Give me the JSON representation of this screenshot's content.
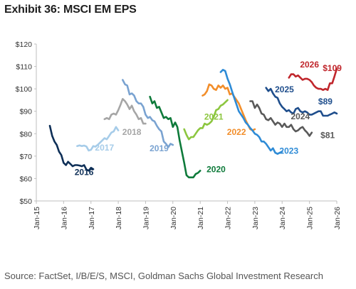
{
  "title": "Exhibit 36: MSCI EM EPS",
  "source": "Source: FactSet, I/B/E/S, MSCI, Goldman Sachs Global Investment Research",
  "chart_data": {
    "type": "line",
    "title": "Exhibit 36: MSCI EM EPS",
    "ylim": [
      50,
      120
    ],
    "xlim": [
      "2015-01-01",
      "2026-01-01"
    ],
    "y_ticks": [
      "$50",
      "$60",
      "$70",
      "$80",
      "$90",
      "$100",
      "$110",
      "$120"
    ],
    "y_tick_values": [
      50,
      60,
      70,
      80,
      90,
      100,
      110,
      120
    ],
    "x_ticks": [
      "Jan-15",
      "Jan-16",
      "Jan-17",
      "Jan-18",
      "Jan-19",
      "Jan-20",
      "Jan-21",
      "Jan-22",
      "Jan-23",
      "Jan-24",
      "Jan-25",
      "Jan-26"
    ],
    "x_tick_dates": [
      "2015-01-01",
      "2016-01-01",
      "2017-01-01",
      "2018-01-01",
      "2019-01-01",
      "2020-01-01",
      "2021-01-01",
      "2022-01-01",
      "2023-01-01",
      "2024-01-01",
      "2025-01-01",
      "2026-01-01"
    ],
    "grid": false,
    "legend": "none",
    "series": [
      {
        "name": "2016",
        "color": "#0e2f57",
        "x": [
          "2015-07-01",
          "2015-08-01",
          "2015-09-01",
          "2015-10-01",
          "2015-11-01",
          "2015-12-01",
          "2016-01-01",
          "2016-02-01",
          "2016-03-01",
          "2016-04-01",
          "2016-05-01",
          "2016-06-01",
          "2016-07-01",
          "2016-08-01",
          "2016-09-01",
          "2016-10-01",
          "2016-11-01",
          "2016-12-01",
          "2017-01-01",
          "2017-02-01"
        ],
        "y": [
          83.5,
          79,
          76.5,
          75,
          72,
          70.5,
          67,
          66,
          67.5,
          66.5,
          65.5,
          66,
          66,
          65.8,
          65.5,
          66,
          64,
          63.5,
          64.8,
          64.2
        ]
      },
      {
        "name": "2017",
        "color": "#a6cce9",
        "x": [
          "2016-07-01",
          "2016-08-01",
          "2016-09-01",
          "2016-10-01",
          "2016-11-01",
          "2016-12-01",
          "2017-01-01",
          "2017-02-01",
          "2017-03-01",
          "2017-04-01",
          "2017-05-01",
          "2017-06-01",
          "2017-07-01",
          "2017-08-01",
          "2017-09-01",
          "2017-10-01",
          "2017-11-01",
          "2017-12-01",
          "2018-01-01"
        ],
        "y": [
          74.5,
          74.8,
          74.5,
          74.7,
          74.3,
          72.5,
          72.8,
          74.5,
          74.2,
          75,
          76,
          77,
          78,
          77.5,
          79,
          80.5,
          81,
          83,
          81.5
        ]
      },
      {
        "name": "2018",
        "color": "#a6a6a6",
        "x": [
          "2017-07-01",
          "2017-08-01",
          "2017-09-01",
          "2017-10-01",
          "2017-11-01",
          "2017-12-01",
          "2018-01-01",
          "2018-02-01",
          "2018-03-01",
          "2018-04-01",
          "2018-05-01",
          "2018-06-01",
          "2018-07-01",
          "2018-08-01",
          "2018-09-01",
          "2018-10-01",
          "2018-11-01",
          "2018-12-01",
          "2019-01-01"
        ],
        "y": [
          86.5,
          87,
          86.5,
          88.5,
          89,
          88.5,
          90.5,
          93,
          95.5,
          94.5,
          93,
          91,
          92.5,
          90,
          88.5,
          86.5,
          87,
          84.5,
          84.5
        ]
      },
      {
        "name": "2019",
        "color": "#7aa3d1",
        "x": [
          "2018-03-01",
          "2018-04-01",
          "2018-05-01",
          "2018-06-01",
          "2018-07-01",
          "2018-08-01",
          "2018-09-01",
          "2018-10-01",
          "2018-11-01",
          "2018-12-01",
          "2019-01-01",
          "2019-02-01",
          "2019-03-01",
          "2019-04-01",
          "2019-05-01",
          "2019-06-01",
          "2019-07-01",
          "2019-08-01",
          "2019-09-01",
          "2019-10-01",
          "2019-11-01",
          "2019-12-01",
          "2020-01-01"
        ],
        "y": [
          104,
          102,
          101.5,
          97.5,
          98,
          97,
          94.5,
          93.5,
          93.5,
          92,
          88.5,
          87,
          87.5,
          86,
          85.5,
          83.5,
          82,
          81,
          76.5,
          75.5,
          74,
          75.5,
          75
        ]
      },
      {
        "name": "2020",
        "color": "#0e7a3a",
        "x": [
          "2019-03-01",
          "2019-04-01",
          "2019-05-01",
          "2019-06-01",
          "2019-07-01",
          "2019-08-01",
          "2019-09-01",
          "2019-10-01",
          "2019-11-01",
          "2019-12-01",
          "2020-01-01",
          "2020-02-01",
          "2020-03-01",
          "2020-04-01",
          "2020-05-01",
          "2020-06-01",
          "2020-07-01",
          "2020-08-01",
          "2020-09-01",
          "2020-10-01",
          "2020-11-01",
          "2020-12-01",
          "2021-01-01"
        ],
        "y": [
          96.5,
          93.5,
          94.5,
          91.5,
          92,
          89.5,
          87,
          87.5,
          86.5,
          87,
          83,
          85,
          83,
          77,
          72,
          67,
          61.5,
          60.5,
          60.5,
          60.5,
          62,
          62.5,
          63.5
        ]
      },
      {
        "name": "2021",
        "color": "#8cc63f",
        "x": [
          "2020-06-01",
          "2020-07-01",
          "2020-08-01",
          "2020-09-01",
          "2020-10-01",
          "2020-11-01",
          "2020-12-01",
          "2021-01-01",
          "2021-02-01",
          "2021-03-01",
          "2021-04-01",
          "2021-05-01",
          "2021-06-01",
          "2021-07-01",
          "2021-08-01",
          "2021-09-01",
          "2021-10-01",
          "2021-11-01",
          "2021-12-01",
          "2022-01-01"
        ],
        "y": [
          82,
          79.5,
          77.5,
          78.5,
          78.5,
          80,
          81.5,
          82.5,
          82.5,
          84.5,
          84,
          84.5,
          85.5,
          87.5,
          90.5,
          91,
          92.5,
          93,
          94,
          95
        ]
      },
      {
        "name": "2022",
        "color": "#f28e2b",
        "x": [
          "2021-02-01",
          "2021-03-01",
          "2021-04-01",
          "2021-05-01",
          "2021-06-01",
          "2021-07-01",
          "2021-08-01",
          "2021-09-01",
          "2021-10-01",
          "2021-11-01",
          "2021-12-01",
          "2022-01-01",
          "2022-02-01",
          "2022-03-01",
          "2022-04-01",
          "2022-05-01",
          "2022-06-01",
          "2022-07-01",
          "2022-08-01",
          "2022-09-01",
          "2022-10-01",
          "2022-11-01",
          "2022-12-01",
          "2023-01-01"
        ],
        "y": [
          97,
          97.5,
          99,
          102,
          101.5,
          100,
          99.5,
          101.5,
          100.5,
          101.5,
          100,
          100.5,
          97.5,
          98,
          96.5,
          95,
          93.5,
          91,
          88.5,
          86,
          84,
          82,
          81.5,
          82
        ]
      },
      {
        "name": "2023",
        "color": "#2e8bd6",
        "x": [
          "2021-10-01",
          "2021-11-01",
          "2021-12-01",
          "2022-01-01",
          "2022-02-01",
          "2022-03-01",
          "2022-04-01",
          "2022-05-01",
          "2022-06-01",
          "2022-07-01",
          "2022-08-01",
          "2022-09-01",
          "2022-10-01",
          "2022-11-01",
          "2022-12-01",
          "2023-01-01",
          "2023-02-01",
          "2023-03-01",
          "2023-04-01",
          "2023-05-01",
          "2023-06-01",
          "2023-07-01",
          "2023-08-01",
          "2023-09-01",
          "2023-10-01",
          "2023-11-01",
          "2023-12-01",
          "2024-01-01"
        ],
        "y": [
          107.5,
          108.5,
          108,
          104.5,
          102,
          99,
          96,
          93,
          90,
          88.5,
          87,
          85,
          84,
          82.5,
          81.5,
          80,
          79.5,
          78.5,
          76.5,
          76.5,
          75.5,
          74,
          72.5,
          73.5,
          71.5,
          71,
          71.5,
          72
        ]
      },
      {
        "name": "2024",
        "color": "#595959",
        "x": [
          "2022-11-01",
          "2022-12-01",
          "2023-01-01",
          "2023-02-01",
          "2023-03-01",
          "2023-04-01",
          "2023-05-01",
          "2023-06-01",
          "2023-07-01",
          "2023-08-01",
          "2023-09-01",
          "2023-10-01",
          "2023-11-01",
          "2023-12-01",
          "2024-01-01",
          "2024-02-01",
          "2024-03-01",
          "2024-04-01",
          "2024-05-01",
          "2024-06-01",
          "2024-07-01",
          "2024-08-01",
          "2024-09-01",
          "2024-10-01",
          "2024-11-01",
          "2024-12-01",
          "2025-01-01",
          "2025-02-01"
        ],
        "y": [
          94.5,
          94.5,
          91.5,
          93,
          91.5,
          89,
          88.5,
          86.5,
          86,
          87,
          85.5,
          84,
          85,
          84.5,
          83,
          84.5,
          83,
          83,
          84,
          82,
          81,
          81.5,
          82.5,
          83,
          81.5,
          80.5,
          79,
          80.5
        ]
      },
      {
        "name": "2025",
        "color": "#1f4e8c",
        "x": [
          "2023-06-01",
          "2023-07-01",
          "2023-08-01",
          "2023-09-01",
          "2023-10-01",
          "2023-11-01",
          "2023-12-01",
          "2024-01-01",
          "2024-02-01",
          "2024-03-01",
          "2024-04-01",
          "2024-05-01",
          "2024-06-01",
          "2024-07-01",
          "2024-08-01",
          "2024-09-01",
          "2024-10-01",
          "2024-11-01",
          "2024-12-01",
          "2025-01-01",
          "2025-02-01",
          "2025-03-01",
          "2025-04-01",
          "2025-05-01",
          "2025-06-01",
          "2025-07-01",
          "2025-08-01",
          "2025-09-01",
          "2025-10-01",
          "2025-11-01",
          "2025-12-01",
          "2026-01-01"
        ],
        "y": [
          100.5,
          99,
          100,
          98,
          96.5,
          96,
          93.5,
          92,
          91,
          90,
          90.5,
          89.5,
          89,
          91,
          91.5,
          90,
          89.5,
          90,
          89.5,
          88.5,
          88.5,
          89,
          89.5,
          90,
          90,
          88,
          88,
          88,
          88.5,
          89,
          89.5,
          89
        ]
      },
      {
        "name": "2026",
        "color": "#c0262c",
        "x": [
          "2024-04-01",
          "2024-05-01",
          "2024-06-01",
          "2024-07-01",
          "2024-08-01",
          "2024-09-01",
          "2024-10-01",
          "2024-11-01",
          "2024-12-01",
          "2025-01-01",
          "2025-02-01",
          "2025-03-01",
          "2025-04-01",
          "2025-05-01",
          "2025-06-01",
          "2025-07-01",
          "2025-08-01",
          "2025-09-01",
          "2025-10-01",
          "2025-11-01",
          "2025-12-01",
          "2026-01-01"
        ],
        "y": [
          105,
          106.5,
          106.5,
          105.5,
          106,
          105,
          104,
          104.5,
          104.5,
          104,
          103,
          101.5,
          100.5,
          100,
          100,
          99.5,
          100,
          99.5,
          102.5,
          102.5,
          105.5,
          109
        ]
      }
    ],
    "annotations": [
      {
        "series": "2016",
        "text": "2016",
        "x": "2016-10-01",
        "y": 61.5
      },
      {
        "series": "2017",
        "text": "2017",
        "x": "2017-07-01",
        "y": 72.5
      },
      {
        "series": "2018",
        "text": "2018",
        "x": "2018-07-01",
        "y": 79.5
      },
      {
        "series": "2019",
        "text": "2019",
        "x": "2019-07-01",
        "y": 72.2
      },
      {
        "series": "2020",
        "text": "2020",
        "x": "2021-08-01",
        "y": 62.8
      },
      {
        "series": "2021",
        "text": "2021",
        "x": "2021-07-01",
        "y": 86.2
      },
      {
        "series": "2022",
        "text": "2022",
        "x": "2022-05-01",
        "y": 79.5
      },
      {
        "series": "2023",
        "text": "2023",
        "x": "2024-04-01",
        "y": 71
      },
      {
        "series": "2024",
        "text": "2024",
        "x": "2024-09-01",
        "y": 86.5
      },
      {
        "series": "2025",
        "text": "2025",
        "x": "2024-02-01",
        "y": 98.5
      },
      {
        "series": "2026",
        "text": "2026",
        "x": "2025-01-01",
        "y": 109.5
      },
      {
        "series": "2026",
        "text": "$109",
        "x": "2025-11-01",
        "y": 108
      },
      {
        "series": "2025",
        "text": "$89",
        "x": "2025-08-01",
        "y": 93
      },
      {
        "series": "2024",
        "text": "$81",
        "x": "2025-09-01",
        "y": 78
      }
    ]
  }
}
